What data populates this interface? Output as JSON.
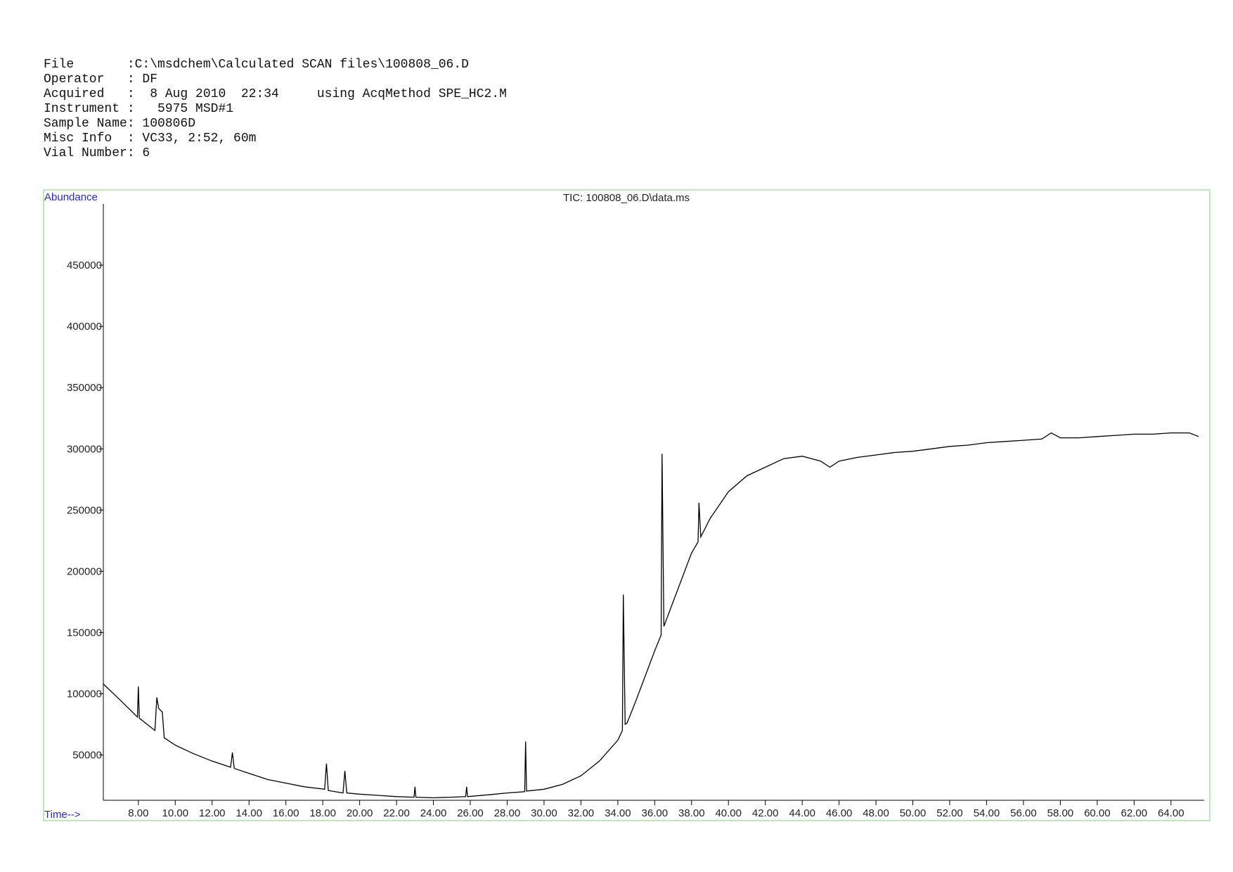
{
  "header": {
    "lines": [
      "File       :C:\\msdchem\\Calculated SCAN files\\100808_06.D",
      "Operator   : DF",
      "Acquired   :  8 Aug 2010  22:34     using AcqMethod SPE_HC2.M",
      "Instrument :   5975 MSD#1",
      "Sample Name: 100806D",
      "Misc Info  : VC33, 2:52, 60m",
      "Vial Number: 6"
    ]
  },
  "chart_data": {
    "type": "line",
    "title": "TIC: 100808_06.D\\data.ms",
    "y_label": "Abundance",
    "x_label": "Time-->",
    "color": "#000000",
    "x": [
      6.1,
      7,
      7.95,
      8.0,
      8.05,
      8.9,
      9.0,
      9.1,
      9.3,
      9.4,
      10,
      11,
      12,
      13.0,
      13.1,
      13.2,
      14,
      15,
      16,
      17,
      18.1,
      18.2,
      18.3,
      19.1,
      19.2,
      19.3,
      20,
      21,
      22,
      22.95,
      23.0,
      23.05,
      24,
      25,
      25.75,
      25.8,
      25.85,
      27,
      28,
      28.95,
      29.0,
      29.05,
      30,
      31,
      32,
      33,
      34,
      34.25,
      34.3,
      34.4,
      34.5,
      35,
      36,
      36.35,
      36.4,
      36.5,
      37,
      38,
      38.35,
      38.4,
      38.5,
      39,
      40,
      41,
      42,
      43,
      44,
      45,
      45.5,
      46,
      47,
      48,
      49,
      50,
      51,
      52,
      53,
      54,
      55,
      56,
      57,
      57.5,
      58,
      59,
      60,
      61,
      62,
      63,
      64,
      65,
      65.5
    ],
    "values": [
      108000,
      95000,
      81000,
      106000,
      80000,
      70000,
      97000,
      88000,
      85000,
      64000,
      58000,
      51000,
      45000,
      40000,
      52000,
      39000,
      35000,
      30000,
      27000,
      24000,
      22000,
      43000,
      21000,
      19000,
      37000,
      19000,
      18000,
      17000,
      16000,
      15500,
      24000,
      15500,
      15000,
      15500,
      16000,
      24000,
      16000,
      17500,
      19000,
      20000,
      61000,
      20500,
      22000,
      26000,
      33000,
      45000,
      62000,
      70000,
      181000,
      75000,
      76000,
      95000,
      135000,
      148000,
      296000,
      155000,
      175000,
      215000,
      224000,
      256000,
      228000,
      243000,
      265000,
      278000,
      285000,
      292000,
      294000,
      290000,
      285000,
      290000,
      293000,
      295000,
      297000,
      298000,
      300000,
      302000,
      303000,
      305000,
      306000,
      307000,
      308000,
      313000,
      309000,
      309000,
      310000,
      311000,
      312000,
      312000,
      313000,
      313000,
      310000
    ],
    "xlim": [
      6.1,
      65.8
    ],
    "ylim": [
      13000,
      500000
    ],
    "xticks": [
      {
        "value": 8,
        "label": "8.00"
      },
      {
        "value": 10,
        "label": "10.00"
      },
      {
        "value": 12,
        "label": "12.00"
      },
      {
        "value": 14,
        "label": "14.00"
      },
      {
        "value": 16,
        "label": "16.00"
      },
      {
        "value": 18,
        "label": "18.00"
      },
      {
        "value": 20,
        "label": "20.00"
      },
      {
        "value": 22,
        "label": "22.00"
      },
      {
        "value": 24,
        "label": "24.00"
      },
      {
        "value": 26,
        "label": "26.00"
      },
      {
        "value": 28,
        "label": "28.00"
      },
      {
        "value": 30,
        "label": "30.00"
      },
      {
        "value": 32,
        "label": "32.00"
      },
      {
        "value": 34,
        "label": "34.00"
      },
      {
        "value": 36,
        "label": "36.00"
      },
      {
        "value": 38,
        "label": "38.00"
      },
      {
        "value": 40,
        "label": "40.00"
      },
      {
        "value": 42,
        "label": "42.00"
      },
      {
        "value": 44,
        "label": "44.00"
      },
      {
        "value": 46,
        "label": "46.00"
      },
      {
        "value": 48,
        "label": "48.00"
      },
      {
        "value": 50,
        "label": "50.00"
      },
      {
        "value": 52,
        "label": "52.00"
      },
      {
        "value": 54,
        "label": "54.00"
      },
      {
        "value": 56,
        "label": "56.00"
      },
      {
        "value": 58,
        "label": "58.00"
      },
      {
        "value": 60,
        "label": "60.00"
      },
      {
        "value": 62,
        "label": "62.00"
      },
      {
        "value": 64,
        "label": "64.00"
      }
    ],
    "yticks": [
      50000,
      100000,
      150000,
      200000,
      250000,
      300000,
      350000,
      400000,
      450000
    ]
  }
}
